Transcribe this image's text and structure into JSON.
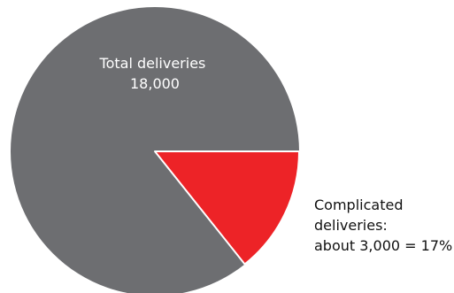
{
  "chart_data": {
    "type": "pie",
    "title": "",
    "slices": [
      {
        "label_lines": [
          "Total deliveries",
          "18,000"
        ],
        "value": 18000,
        "percent": 83,
        "color": "#6d6e71"
      },
      {
        "label_lines": [
          "Complicated",
          "deliveries:",
          "about 3,000 = 17%"
        ],
        "value": 3000,
        "percent": 17,
        "color": "#ed2327"
      }
    ],
    "start_angle_deg": 90,
    "direction": "clockwise",
    "legend": "none"
  }
}
